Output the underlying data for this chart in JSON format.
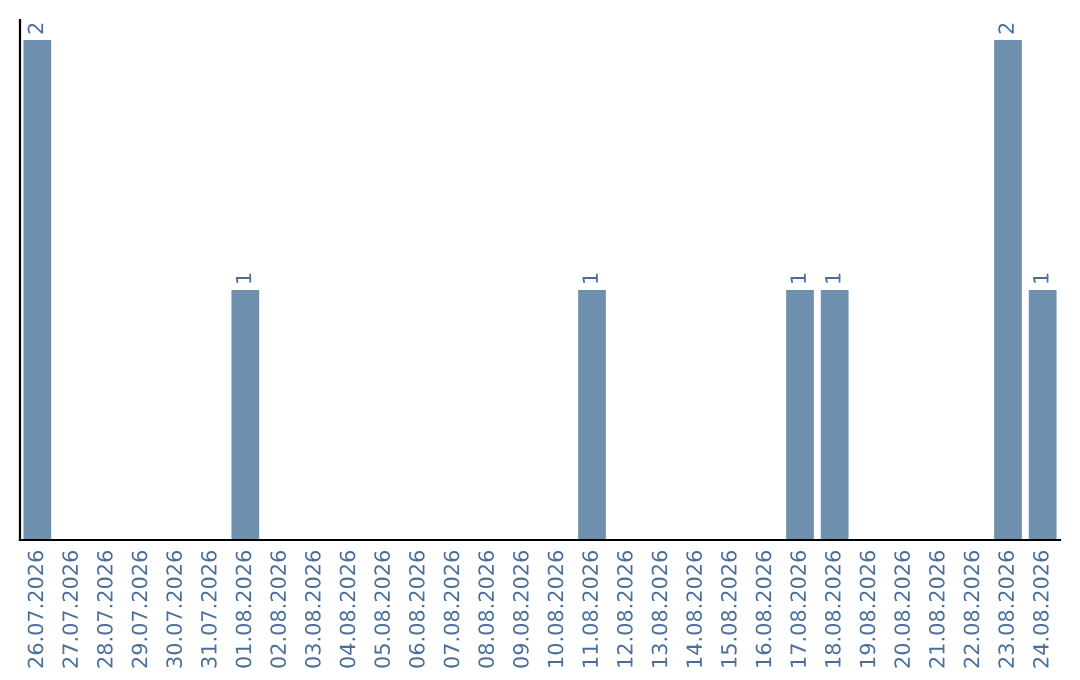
{
  "chart_data": {
    "type": "bar",
    "categories": [
      "26.07.2026",
      "27.07.2026",
      "28.07.2026",
      "29.07.2026",
      "30.07.2026",
      "31.07.2026",
      "01.08.2026",
      "02.08.2026",
      "03.08.2026",
      "04.08.2026",
      "05.08.2026",
      "06.08.2026",
      "07.08.2026",
      "08.08.2026",
      "09.08.2026",
      "10.08.2026",
      "11.08.2026",
      "12.08.2026",
      "13.08.2026",
      "14.08.2026",
      "15.08.2026",
      "16.08.2026",
      "17.08.2026",
      "18.08.2026",
      "19.08.2026",
      "20.08.2026",
      "21.08.2026",
      "22.08.2026",
      "23.08.2026",
      "24.08.2026"
    ],
    "values": [
      2,
      0,
      0,
      0,
      0,
      0,
      1,
      0,
      0,
      0,
      0,
      0,
      0,
      0,
      0,
      0,
      1,
      0,
      0,
      0,
      0,
      0,
      1,
      1,
      0,
      0,
      0,
      0,
      2,
      1
    ],
    "value_labels": [
      "2",
      null,
      null,
      null,
      null,
      null,
      "1",
      null,
      null,
      null,
      null,
      null,
      null,
      null,
      null,
      null,
      "1",
      null,
      null,
      null,
      null,
      null,
      "1",
      "1",
      null,
      null,
      null,
      null,
      "2",
      "1"
    ],
    "color": "#6e8fae",
    "ylim": [
      0,
      2.08
    ],
    "tick_labels": "x",
    "grid": false,
    "legend": false
  }
}
